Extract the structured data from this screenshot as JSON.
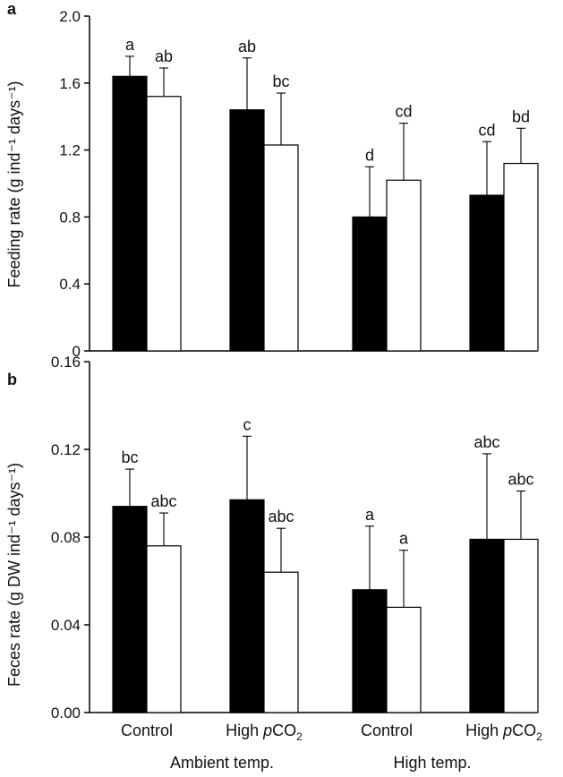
{
  "chart_data": [
    {
      "panel": "a",
      "type": "bar",
      "ylabel": "Feeding rate (g ind⁻¹ days⁻¹)",
      "ylim": [
        0,
        2.0
      ],
      "yticks": [
        "0",
        "0.4",
        "0.8",
        "1.2",
        "1.6",
        "2.0"
      ],
      "ytick_values": [
        0,
        0.4,
        0.8,
        1.2,
        1.6,
        2.0
      ],
      "bars": [
        {
          "group": 0,
          "fill": "#000000",
          "value": 1.64,
          "error": 0.12,
          "letter": "a"
        },
        {
          "group": 0,
          "fill": "#ffffff",
          "value": 1.52,
          "error": 0.17,
          "letter": "ab"
        },
        {
          "group": 1,
          "fill": "#000000",
          "value": 1.44,
          "error": 0.31,
          "letter": "ab"
        },
        {
          "group": 1,
          "fill": "#ffffff",
          "value": 1.23,
          "error": 0.31,
          "letter": "bc"
        },
        {
          "group": 2,
          "fill": "#000000",
          "value": 0.8,
          "error": 0.3,
          "letter": "d"
        },
        {
          "group": 2,
          "fill": "#ffffff",
          "value": 1.02,
          "error": 0.34,
          "letter": "cd"
        },
        {
          "group": 3,
          "fill": "#000000",
          "value": 0.93,
          "error": 0.32,
          "letter": "cd"
        },
        {
          "group": 3,
          "fill": "#ffffff",
          "value": 1.12,
          "error": 0.21,
          "letter": "bd"
        }
      ]
    },
    {
      "panel": "b",
      "type": "bar",
      "ylabel": "Feces rate (g DW ind⁻¹ days⁻¹)",
      "ylim": [
        0,
        0.16
      ],
      "yticks": [
        "0.00",
        "0.04",
        "0.08",
        "0.12",
        "0.16"
      ],
      "ytick_values": [
        0,
        0.04,
        0.08,
        0.12,
        0.16
      ],
      "bars": [
        {
          "group": 0,
          "fill": "#000000",
          "value": 0.094,
          "error": 0.017,
          "letter": "bc"
        },
        {
          "group": 0,
          "fill": "#ffffff",
          "value": 0.076,
          "error": 0.015,
          "letter": "abc"
        },
        {
          "group": 1,
          "fill": "#000000",
          "value": 0.097,
          "error": 0.029,
          "letter": "c"
        },
        {
          "group": 1,
          "fill": "#ffffff",
          "value": 0.064,
          "error": 0.02,
          "letter": "abc"
        },
        {
          "group": 2,
          "fill": "#000000",
          "value": 0.056,
          "error": 0.029,
          "letter": "a"
        },
        {
          "group": 2,
          "fill": "#ffffff",
          "value": 0.048,
          "error": 0.026,
          "letter": "a"
        },
        {
          "group": 3,
          "fill": "#000000",
          "value": 0.079,
          "error": 0.039,
          "letter": "abc"
        },
        {
          "group": 3,
          "fill": "#ffffff",
          "value": 0.079,
          "error": 0.022,
          "letter": "abc"
        }
      ]
    }
  ],
  "categories": [
    {
      "pre": "Control",
      "italic": "",
      "post": "",
      "sub": ""
    },
    {
      "pre": "High ",
      "italic": "p",
      "post": "CO",
      "sub": "2"
    },
    {
      "pre": "Control",
      "italic": "",
      "post": "",
      "sub": ""
    },
    {
      "pre": "High ",
      "italic": "p",
      "post": "CO",
      "sub": "2"
    }
  ],
  "groups": [
    "Ambient temp.",
    "High temp."
  ]
}
